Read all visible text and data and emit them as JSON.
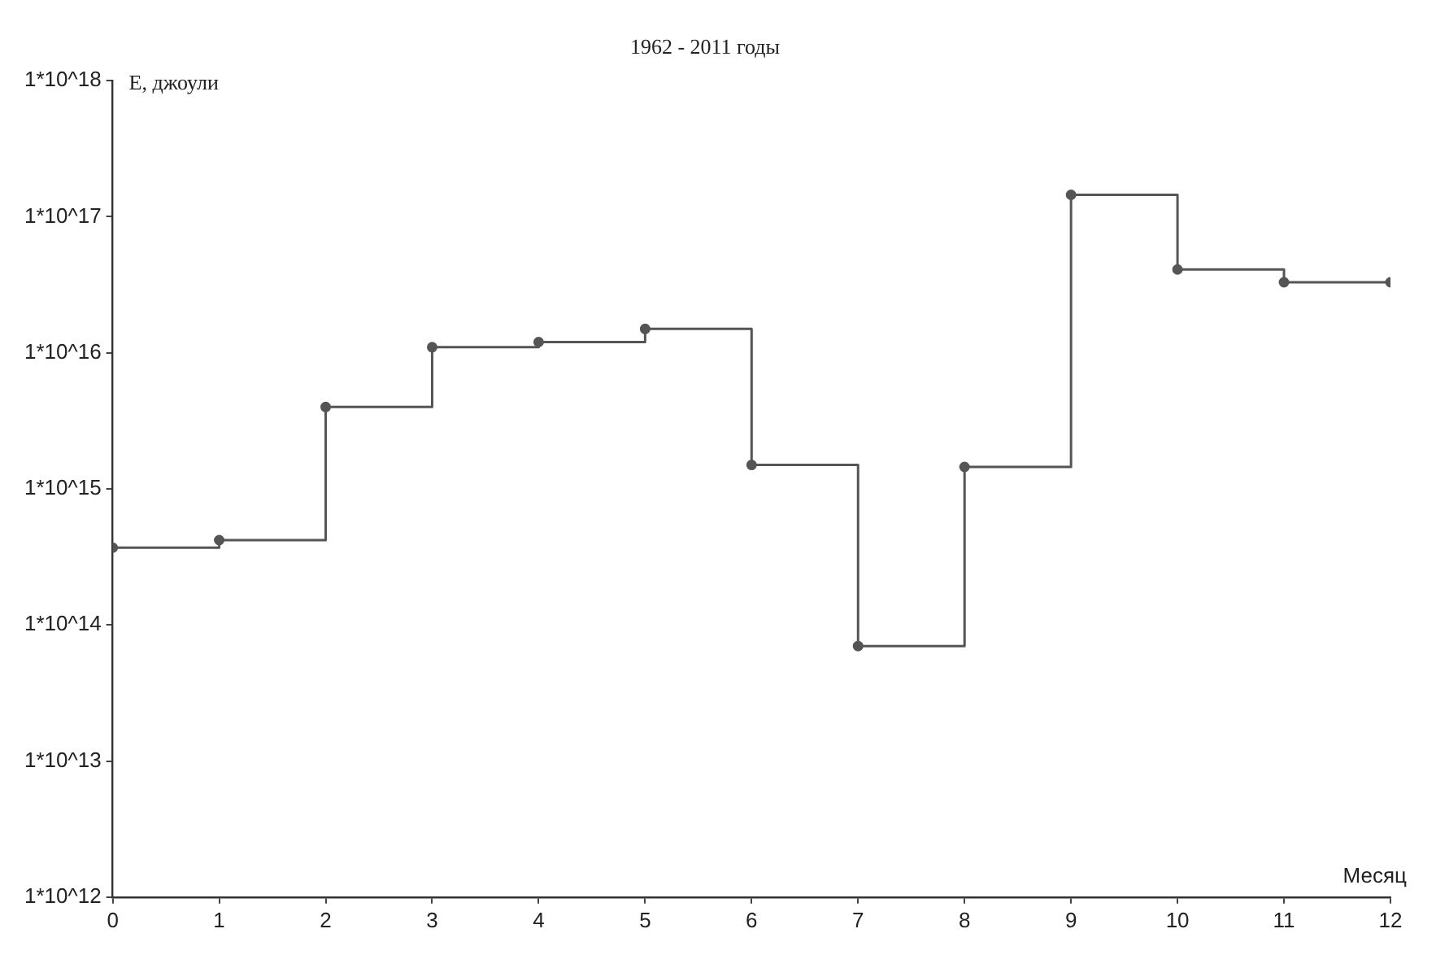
{
  "chart_data": {
    "type": "step",
    "title": "1962 - 2011 годы",
    "xlabel": "Месяц",
    "ylabel": "E, джоули",
    "x": [
      0,
      1,
      2,
      3,
      4,
      5,
      6,
      7,
      8,
      9,
      10,
      11,
      12
    ],
    "series": [
      {
        "color": "#555555",
        "values": [
          370000000000000.0,
          420000000000000.0,
          4000000000000000.0,
          1.1e+16,
          1.2e+16,
          1.5e+16,
          1500000000000000.0,
          70000000000000.0,
          1450000000000000.0,
          1.45e+17,
          4.1e+16,
          3.3e+16,
          3.3e+16
        ]
      }
    ],
    "log": "y",
    "grid": false,
    "legend": false,
    "marker": "circle",
    "line_style": "solid",
    "xlim": [
      0,
      12
    ],
    "xticks": [
      0,
      1,
      2,
      3,
      4,
      5,
      6,
      7,
      8,
      9,
      10,
      11,
      12
    ],
    "ylim": [
      1000000000000.0,
      1e+18
    ],
    "yticks": [
      {
        "value": 1000000000000.0,
        "label": "1*10^12"
      },
      {
        "value": 10000000000000.0,
        "label": "1*10^13"
      },
      {
        "value": 100000000000000.0,
        "label": "1*10^14"
      },
      {
        "value": 1000000000000000.0,
        "label": "1*10^15"
      },
      {
        "value": 1e+16,
        "label": "1*10^16"
      },
      {
        "value": 1e+17,
        "label": "1*10^17"
      },
      {
        "value": 1e+18,
        "label": "1*10^18"
      }
    ]
  }
}
